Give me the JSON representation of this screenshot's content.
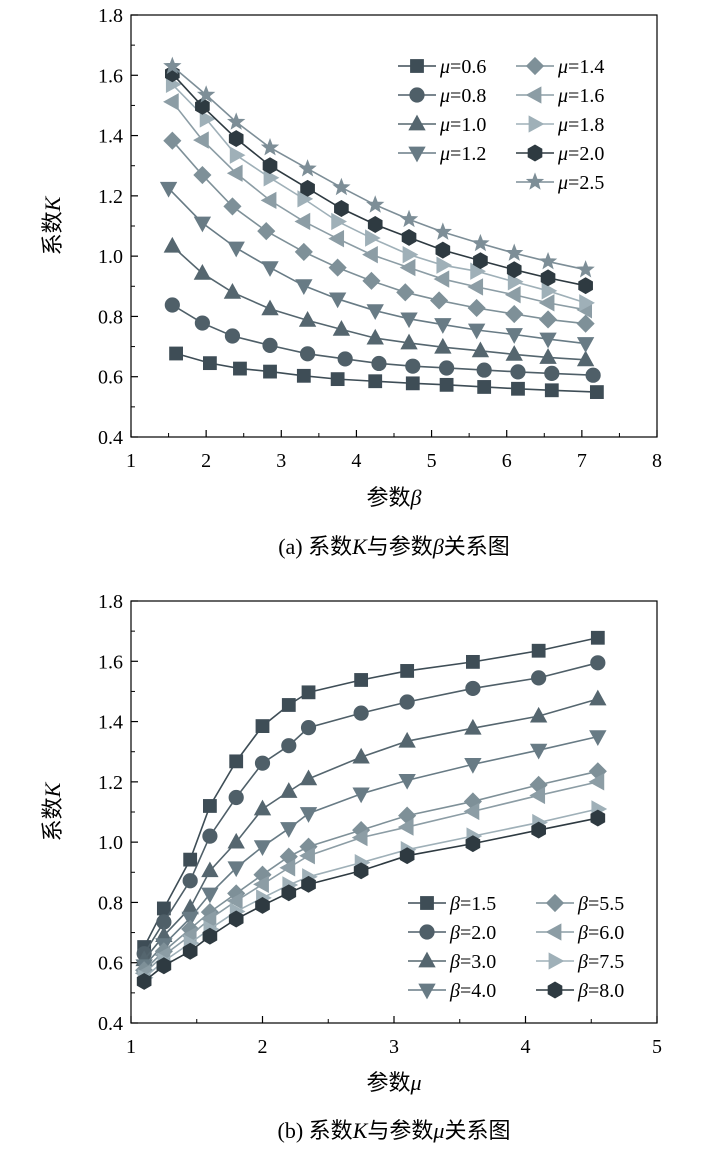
{
  "chart_data": [
    {
      "type": "line",
      "ylabel_prefix": "系数",
      "ylabel_var": "K",
      "xlabel_prefix": "参数",
      "xlabel_var": "β",
      "caption_prefix": "(a) 系数",
      "caption_var1": "K",
      "caption_mid": "与参数",
      "caption_var2": "β",
      "caption_suffix": "关系图",
      "xlim": [
        1,
        8
      ],
      "ylim": [
        0.4,
        1.8
      ],
      "xticks": [
        "1",
        "2",
        "3",
        "4",
        "5",
        "6",
        "7",
        "8"
      ],
      "yticks": [
        "0.4",
        "0.6",
        "0.8",
        "1.0",
        "1.2",
        "1.4",
        "1.6",
        "1.8"
      ],
      "legend_var": "μ",
      "x": [
        1.5,
        2.0,
        2.4,
        2.85,
        3.3,
        3.75,
        4.2,
        4.65,
        5.1,
        5.6,
        6.1,
        6.55,
        7.05
      ],
      "series": [
        {
          "name": "=0.6",
          "marker": "square",
          "color": "#3e4d56",
          "x": [
            1.6,
            2.05,
            2.45,
            2.85,
            3.3,
            3.75,
            4.25,
            4.75,
            5.2,
            5.7,
            6.15,
            6.6,
            7.2
          ],
          "values": [
            0.677,
            0.645,
            0.627,
            0.617,
            0.603,
            0.592,
            0.585,
            0.578,
            0.573,
            0.566,
            0.56,
            0.555,
            0.549
          ]
        },
        {
          "name": "=0.8",
          "marker": "circle",
          "color": "#4f5f68",
          "x": [
            1.55,
            1.95,
            2.35,
            2.85,
            3.35,
            3.85,
            4.3,
            4.75,
            5.2,
            5.7,
            6.15,
            6.6,
            7.15
          ],
          "values": [
            0.838,
            0.778,
            0.735,
            0.704,
            0.676,
            0.659,
            0.644,
            0.635,
            0.629,
            0.622,
            0.616,
            0.611,
            0.605
          ]
        },
        {
          "name": "=1.0",
          "marker": "triangle-up",
          "color": "#55666f",
          "x": [
            1.55,
            1.95,
            2.35,
            2.85,
            3.35,
            3.8,
            4.25,
            4.7,
            5.15,
            5.65,
            6.1,
            6.55,
            7.05
          ],
          "values": [
            1.033,
            0.943,
            0.88,
            0.825,
            0.787,
            0.757,
            0.728,
            0.712,
            0.698,
            0.686,
            0.674,
            0.664,
            0.656
          ]
        },
        {
          "name": "=1.2",
          "marker": "triangle-down",
          "color": "#687b85",
          "x": [
            1.5,
            1.95,
            2.4,
            2.85,
            3.3,
            3.75,
            4.25,
            4.7,
            5.15,
            5.6,
            6.1,
            6.55,
            7.05
          ],
          "values": [
            1.225,
            1.11,
            1.027,
            0.962,
            0.902,
            0.858,
            0.819,
            0.792,
            0.773,
            0.755,
            0.74,
            0.725,
            0.71
          ]
        },
        {
          "name": "=1.4",
          "marker": "diamond",
          "color": "#7e9098",
          "x": [
            1.55,
            1.95,
            2.35,
            2.8,
            3.3,
            3.75,
            4.2,
            4.65,
            5.1,
            5.6,
            6.1,
            6.55,
            7.05
          ],
          "values": [
            1.383,
            1.269,
            1.165,
            1.083,
            1.014,
            0.962,
            0.918,
            0.88,
            0.853,
            0.828,
            0.808,
            0.79,
            0.776
          ]
        },
        {
          "name": "=1.6",
          "marker": "triangle-left",
          "color": "#8c9da5",
          "x": [
            1.55,
            1.95,
            2.4,
            2.85,
            3.3,
            3.75,
            4.2,
            4.7,
            5.15,
            5.6,
            6.1,
            6.55,
            7.05
          ],
          "values": [
            1.512,
            1.385,
            1.275,
            1.185,
            1.115,
            1.058,
            1.005,
            0.962,
            0.924,
            0.898,
            0.872,
            0.845,
            0.822
          ]
        },
        {
          "name": "=1.8",
          "marker": "triangle-right",
          "color": "#9fb0b8",
          "x": [
            1.55,
            2.0,
            2.4,
            2.85,
            3.3,
            3.75,
            4.2,
            4.7,
            5.15,
            5.6,
            6.1,
            6.55,
            7.05
          ],
          "values": [
            1.57,
            1.455,
            1.335,
            1.26,
            1.19,
            1.115,
            1.06,
            1.005,
            0.97,
            0.95,
            0.915,
            0.885,
            0.845
          ]
        },
        {
          "name": "=2.0",
          "marker": "hexagon",
          "color": "#2e3a41",
          "x": [
            1.55,
            1.95,
            2.4,
            2.85,
            3.35,
            3.8,
            4.25,
            4.7,
            5.15,
            5.65,
            6.1,
            6.55,
            7.05
          ],
          "values": [
            1.605,
            1.497,
            1.39,
            1.3,
            1.225,
            1.158,
            1.105,
            1.062,
            1.02,
            0.985,
            0.955,
            0.928,
            0.902
          ]
        },
        {
          "name": "=2.5",
          "marker": "star",
          "color": "#7d8e97",
          "x": [
            1.55,
            2.0,
            2.4,
            2.85,
            3.35,
            3.8,
            4.25,
            4.7,
            5.15,
            5.65,
            6.1,
            6.55,
            7.05
          ],
          "values": [
            1.63,
            1.535,
            1.445,
            1.36,
            1.29,
            1.228,
            1.17,
            1.122,
            1.08,
            1.042,
            1.01,
            0.982,
            0.955
          ]
        }
      ]
    },
    {
      "type": "line",
      "ylabel_prefix": "系数",
      "ylabel_var": "K",
      "xlabel_prefix": "参数",
      "xlabel_var": "μ",
      "caption_prefix": "(b) 系数",
      "caption_var1": "K",
      "caption_mid": "与参数",
      "caption_var2": "μ",
      "caption_suffix": "关系图",
      "xlim": [
        1,
        5
      ],
      "ylim": [
        0.4,
        1.8
      ],
      "xticks": [
        "1",
        "2",
        "3",
        "4",
        "5"
      ],
      "yticks": [
        "0.4",
        "0.6",
        "0.8",
        "1.0",
        "1.2",
        "1.4",
        "1.6",
        "1.8"
      ],
      "legend_var": "β",
      "x": [
        1.1,
        1.25,
        1.45,
        1.6,
        1.8,
        2.0,
        2.2,
        2.35,
        2.75,
        3.1,
        3.6,
        4.1,
        4.55
      ],
      "series": [
        {
          "name": "=1.5",
          "marker": "square",
          "color": "#3e4d56",
          "values": [
            0.652,
            0.78,
            0.942,
            1.12,
            1.268,
            1.385,
            1.455,
            1.497,
            1.538,
            1.568,
            1.598,
            1.635,
            1.678
          ]
        },
        {
          "name": "=2.0",
          "marker": "circle",
          "color": "#4f5f68",
          "values": [
            0.63,
            0.735,
            0.872,
            1.02,
            1.148,
            1.262,
            1.32,
            1.38,
            1.428,
            1.465,
            1.51,
            1.545,
            1.595
          ]
        },
        {
          "name": "=3.0",
          "marker": "triangle-up",
          "color": "#55666f",
          "values": [
            0.61,
            0.69,
            0.782,
            0.905,
            1.0,
            1.11,
            1.168,
            1.21,
            1.282,
            1.335,
            1.378,
            1.418,
            1.475
          ]
        },
        {
          "name": "=4.0",
          "marker": "triangle-down",
          "color": "#687b85",
          "values": [
            0.59,
            0.66,
            0.748,
            0.828,
            0.915,
            0.985,
            1.045,
            1.095,
            1.16,
            1.205,
            1.258,
            1.305,
            1.35
          ]
        },
        {
          "name": "=5.5",
          "marker": "diamond",
          "color": "#7e9098",
          "values": [
            0.575,
            0.638,
            0.712,
            0.768,
            0.83,
            0.892,
            0.952,
            0.985,
            1.04,
            1.088,
            1.135,
            1.19,
            1.235
          ]
        },
        {
          "name": "=6.0",
          "marker": "triangle-left",
          "color": "#8c9da5",
          "values": [
            0.565,
            0.625,
            0.69,
            0.745,
            0.805,
            0.86,
            0.915,
            0.955,
            1.015,
            1.05,
            1.102,
            1.155,
            1.2
          ]
        },
        {
          "name": "=7.5",
          "marker": "triangle-right",
          "color": "#9fb0b8",
          "values": [
            0.55,
            0.605,
            0.665,
            0.712,
            0.77,
            0.815,
            0.858,
            0.885,
            0.932,
            0.975,
            1.02,
            1.065,
            1.11
          ]
        },
        {
          "name": "=8.0",
          "marker": "hexagon",
          "color": "#2e3a41",
          "values": [
            0.538,
            0.59,
            0.638,
            0.688,
            0.745,
            0.79,
            0.832,
            0.86,
            0.905,
            0.955,
            0.995,
            1.04,
            1.08
          ]
        }
      ]
    }
  ]
}
